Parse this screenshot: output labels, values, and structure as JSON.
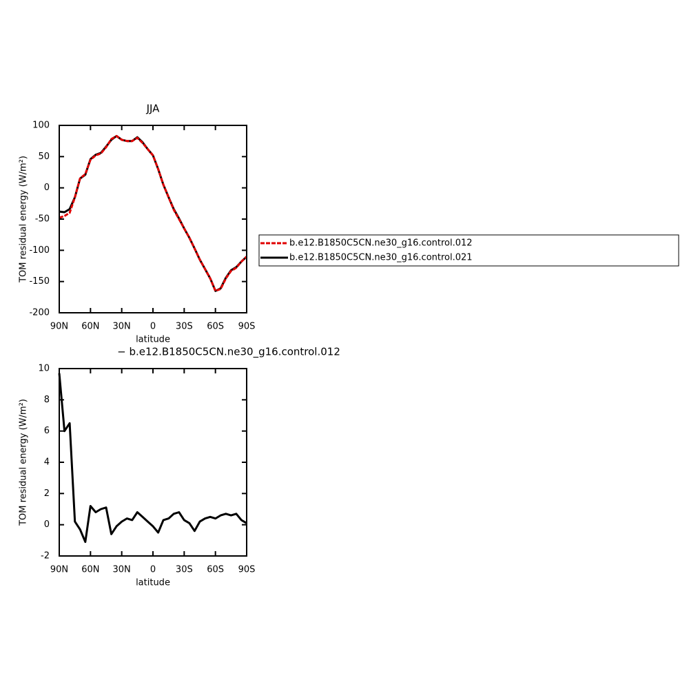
{
  "chart_data": [
    {
      "type": "line",
      "title": "JJA",
      "xlabel": "latitude",
      "ylabel": "TOM residual energy (W/m²)",
      "x": [
        90,
        85,
        80,
        75,
        70,
        65,
        60,
        55,
        50,
        45,
        40,
        35,
        30,
        25,
        20,
        15,
        10,
        5,
        0,
        -5,
        -10,
        -15,
        -20,
        -25,
        -30,
        -35,
        -40,
        -45,
        -50,
        -55,
        -60,
        -65,
        -70,
        -75,
        -80,
        -85,
        -90
      ],
      "xlim": [
        90,
        -90
      ],
      "xticks": [
        {
          "value": 90,
          "label": "90N"
        },
        {
          "value": 60,
          "label": "60N"
        },
        {
          "value": 30,
          "label": "30N"
        },
        0,
        {
          "value": -30,
          "label": "30S"
        },
        {
          "value": -60,
          "label": "60S"
        },
        {
          "value": -90,
          "label": "90S"
        }
      ],
      "ylim": [
        -200,
        100
      ],
      "yticks": [
        -200,
        -150,
        -100,
        -50,
        0,
        50,
        100
      ],
      "legend": "right",
      "series": [
        {
          "name": "b.e12.B1850C5CN.ne30_g16.control.012",
          "color": "#e00000",
          "line_style": "dashed",
          "values": [
            -48,
            -45,
            -40,
            -15,
            15,
            22,
            45,
            52,
            55,
            65,
            78,
            83,
            77,
            75,
            75,
            80,
            72,
            62,
            52,
            30,
            5,
            -15,
            -35,
            -50,
            -65,
            -80,
            -97,
            -115,
            -130,
            -145,
            -165,
            -162,
            -145,
            -133,
            -128,
            -118,
            -110
          ]
        },
        {
          "name": "b.e12.B1850C5CN.ne30_g16.control.021",
          "color": "#000000",
          "line_style": "solid",
          "values": [
            -38,
            -39,
            -34,
            -15,
            15,
            21,
            46,
            53,
            56,
            66,
            77,
            83,
            77,
            75,
            75,
            81,
            73,
            62,
            52,
            30,
            5,
            -15,
            -34,
            -49,
            -65,
            -80,
            -97,
            -115,
            -130,
            -145,
            -165,
            -161,
            -144,
            -132,
            -127,
            -118,
            -110
          ]
        }
      ]
    },
    {
      "type": "line",
      "title": "− b.e12.B1850C5CN.ne30_g16.control.012",
      "xlabel": "latitude",
      "ylabel": "TOM residual energy (W/m²)",
      "x": [
        90,
        85,
        80,
        75,
        70,
        65,
        60,
        55,
        50,
        45,
        40,
        35,
        30,
        25,
        20,
        15,
        10,
        5,
        0,
        -5,
        -10,
        -15,
        -20,
        -25,
        -30,
        -35,
        -40,
        -45,
        -50,
        -55,
        -60,
        -65,
        -70,
        -75,
        -80,
        -85,
        -90
      ],
      "xlim": [
        90,
        -90
      ],
      "xticks": [
        {
          "value": 90,
          "label": "90N"
        },
        {
          "value": 60,
          "label": "60N"
        },
        {
          "value": 30,
          "label": "30N"
        },
        0,
        {
          "value": -30,
          "label": "30S"
        },
        {
          "value": -60,
          "label": "60S"
        },
        {
          "value": -90,
          "label": "90S"
        }
      ],
      "ylim": [
        -2,
        10
      ],
      "yticks": [
        -2,
        0,
        2,
        4,
        6,
        8,
        10
      ],
      "series": [
        {
          "color": "#000000",
          "values": [
            9.7,
            6.0,
            6.5,
            0.2,
            -0.3,
            -1.1,
            1.2,
            0.8,
            1.0,
            1.1,
            -0.6,
            -0.1,
            0.2,
            0.4,
            0.3,
            0.8,
            0.5,
            0.2,
            -0.1,
            -0.5,
            0.3,
            0.4,
            0.7,
            0.8,
            0.3,
            0.1,
            -0.4,
            0.2,
            0.4,
            0.5,
            0.4,
            0.6,
            0.7,
            0.6,
            0.7,
            0.3,
            0.1
          ]
        }
      ]
    }
  ]
}
